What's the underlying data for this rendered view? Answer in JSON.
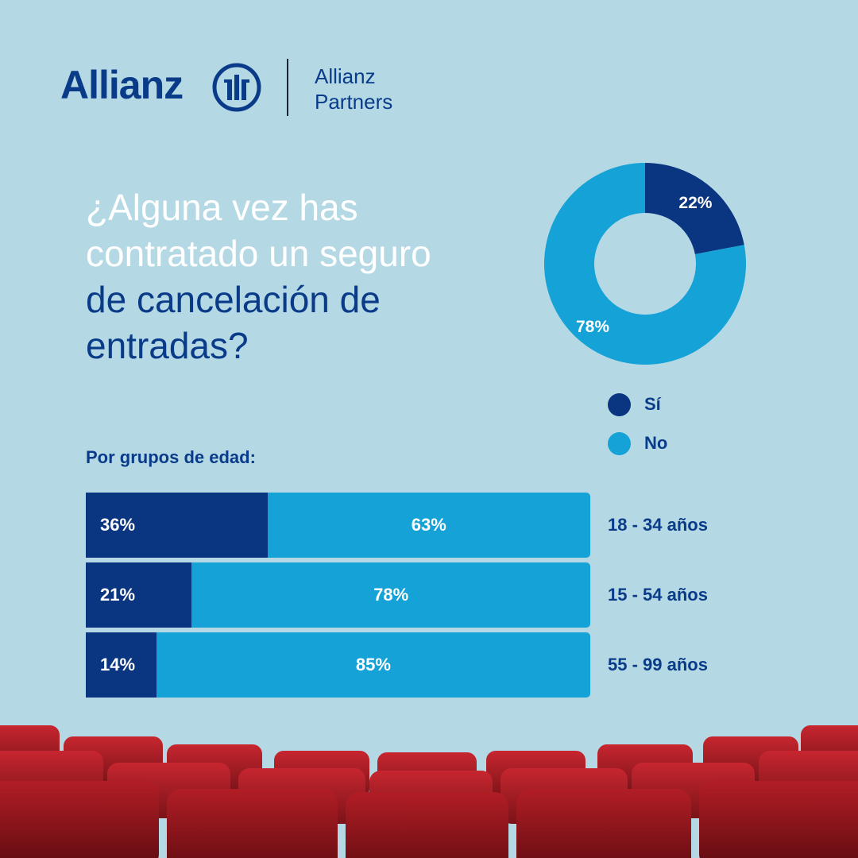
{
  "brand": {
    "wordmark": "Allianz",
    "partner_line1": "Allianz",
    "partner_line2": "Partners",
    "color_dark_blue": "#0a3b89",
    "color_light_blue": "#15a2d7"
  },
  "question": {
    "line1": "¿Alguna vez has",
    "line2": "contratado un seguro",
    "line3": "de cancelación de",
    "line4": "entradas?"
  },
  "age_groups_title": "Por grupos de edad:",
  "chart_data": [
    {
      "type": "pie",
      "donut": true,
      "labels": [
        "Sí",
        "No"
      ],
      "values": [
        22,
        78
      ],
      "value_labels": [
        "22%",
        "78%"
      ],
      "colors": [
        "#0a3580",
        "#15a2d7"
      ],
      "legend": "bottom-right"
    },
    {
      "type": "bar",
      "orientation": "horizontal",
      "stacked": true,
      "title": "Por grupos de edad:",
      "categories": [
        "18 - 34 años",
        "15 - 54 años",
        "55 - 99 años"
      ],
      "series": [
        {
          "name": "Sí",
          "values": [
            36,
            21,
            14
          ],
          "labels": [
            "36%",
            "21%",
            "14%"
          ],
          "color": "#0a3580"
        },
        {
          "name": "No",
          "values": [
            63,
            78,
            85
          ],
          "labels": [
            "63%",
            "78%",
            "85%"
          ],
          "color": "#15a2d7"
        }
      ]
    }
  ]
}
